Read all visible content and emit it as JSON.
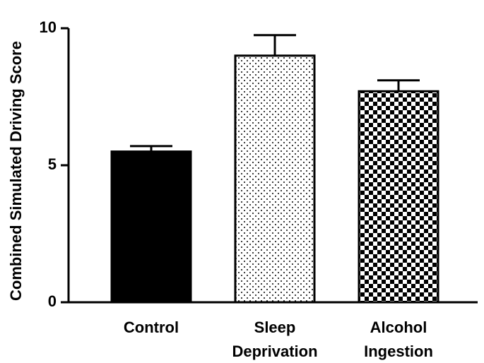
{
  "chart_data": {
    "type": "bar",
    "categories": [
      [
        "Control"
      ],
      [
        "Sleep",
        "Deprivation"
      ],
      [
        "Alcohol",
        "Ingestion"
      ]
    ],
    "values": [
      5.5,
      9.0,
      7.7
    ],
    "error_upper": [
      5.7,
      9.75,
      8.1
    ],
    "ylabel": "Combined Simulated Driving Score",
    "ylim": [
      0,
      10
    ],
    "yticks": [
      0,
      5,
      10
    ],
    "grid": false,
    "legend": "none",
    "bar_fills": [
      "solid-black",
      "dotted",
      "checkerboard"
    ]
  }
}
